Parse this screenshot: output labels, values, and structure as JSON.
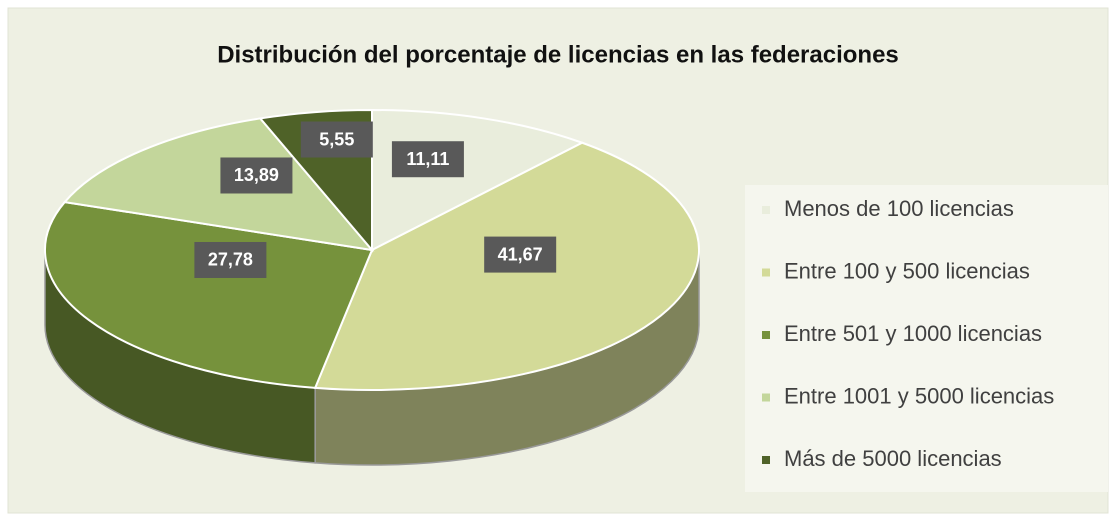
{
  "chart_data": {
    "type": "pie3d",
    "title": "Distribución del porcentaje de licencias en las federaciones",
    "categories": [
      "Menos de 100 licencias",
      "Entre 100 y 500 licencias",
      "Entre 501 y 1000 licencias",
      "Entre 1001 y 5000 licencias",
      "Más de 5000 licencias"
    ],
    "values": [
      11.11,
      41.67,
      27.78,
      13.89,
      5.55
    ],
    "value_labels": [
      "11,11",
      "41,67",
      "27,78",
      "13,89",
      "5,55"
    ],
    "colors": [
      "#e9eddc",
      "#d3da98",
      "#76923c",
      "#c3d69b",
      "#4f6228"
    ],
    "legend": "right"
  }
}
